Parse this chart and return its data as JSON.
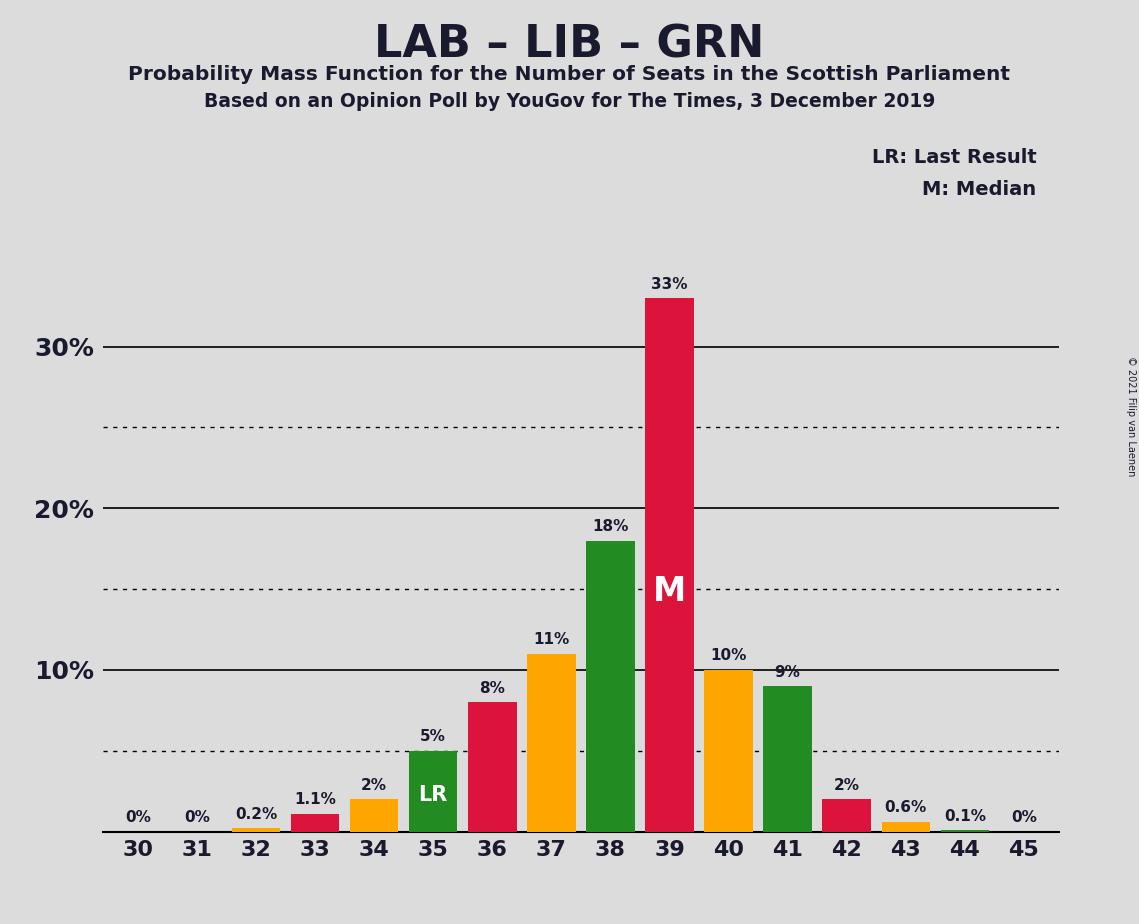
{
  "title": "LAB – LIB – GRN",
  "subtitle1": "Probability Mass Function for the Number of Seats in the Scottish Parliament",
  "subtitle2": "Based on an Opinion Poll by YouGov for The Times, 3 December 2019",
  "copyright": "© 2021 Filip van Laenen",
  "legend_lr": "LR: Last Result",
  "legend_m": "M: Median",
  "seats": [
    30,
    31,
    32,
    33,
    34,
    35,
    36,
    37,
    38,
    39,
    40,
    41,
    42,
    43,
    44,
    45
  ],
  "values": [
    0.0,
    0.0,
    0.2,
    1.1,
    2.0,
    5.0,
    8.0,
    11.0,
    18.0,
    33.0,
    10.0,
    9.0,
    2.0,
    0.6,
    0.1,
    0.0
  ],
  "labels": [
    "0%",
    "0%",
    "0.2%",
    "1.1%",
    "2%",
    "5%",
    "8%",
    "11%",
    "18%",
    "33%",
    "10%",
    "9%",
    "2%",
    "0.6%",
    "0.1%",
    "0%"
  ],
  "colors": [
    "#228B22",
    "#DC143C",
    "#FFA500",
    "#DC143C",
    "#FFA500",
    "#228B22",
    "#DC143C",
    "#FFA500",
    "#228B22",
    "#DC143C",
    "#FFA500",
    "#228B22",
    "#DC143C",
    "#FFA500",
    "#228B22",
    "#FFA500"
  ],
  "lr_seat": 35,
  "median_seat": 39,
  "background_color": "#DCDCDC",
  "solid_lines": [
    0,
    10,
    20,
    30
  ],
  "dotted_lines": [
    5,
    15,
    25
  ],
  "ylim": [
    0,
    36
  ],
  "bar_width": 0.82
}
